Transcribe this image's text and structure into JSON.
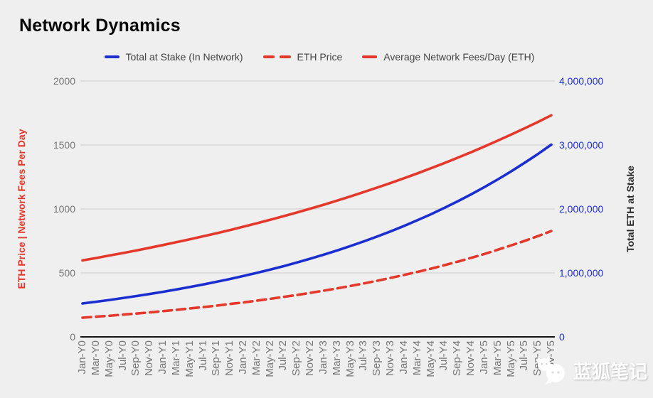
{
  "title": "Network Dynamics",
  "colors": {
    "background": "#efefef",
    "blue": "#1b2fd0",
    "red": "#e4382b",
    "grid": "#cdcdcd",
    "axis_line": "#141414",
    "tick_gray": "#757575",
    "legend_text": "#434343"
  },
  "legend": {
    "items": [
      {
        "label": "Total at Stake (In Network)",
        "color": "#1b2fd0",
        "marker": "solid"
      },
      {
        "label": "ETH Price",
        "color": "#e4382b",
        "marker": "dashed"
      },
      {
        "label": "Average Network Fees/Day (ETH)",
        "color": "#e4382b",
        "marker": "solid"
      }
    ]
  },
  "left_axis": {
    "title": "ETH Price | Network Fees Per Day",
    "color": "#e4382b",
    "ticks": [
      "2000",
      "1500",
      "1000",
      "500",
      "0"
    ]
  },
  "right_axis": {
    "title": "Total ETH at Stake",
    "color": "#1b2fd0",
    "ticks": [
      "4,000,000",
      "3,000,000",
      "2,000,000",
      "1,000,000",
      "0"
    ]
  },
  "watermark": {
    "text": "蓝狐笔记",
    "icon": "bluefox-chat-bubble-icon"
  },
  "chart_data": {
    "type": "line",
    "title": "Network Dynamics",
    "categories": [
      "Jan-Y0",
      "Mar-Y0",
      "May-Y0",
      "Jul-Y0",
      "Sep-Y0",
      "Nov-Y0",
      "Jan-Y1",
      "Mar-Y1",
      "May-Y1",
      "Jul-Y1",
      "Sep-Y1",
      "Nov-Y1",
      "Jan-Y2",
      "Mar-Y2",
      "May-Y2",
      "Jul-Y2",
      "Sep-Y2",
      "Nov-Y2",
      "Jan-Y3",
      "Mar-Y3",
      "May-Y3",
      "Jul-Y3",
      "Sep-Y3",
      "Nov-Y3",
      "Jan-Y4",
      "Mar-Y4",
      "May-Y4",
      "Jul-Y4",
      "Sep-Y4",
      "Nov-Y4",
      "Jan-Y5",
      "Mar-Y5",
      "May-Y5",
      "Jul-Y5",
      "Sep-Y5",
      "Nov-Y5"
    ],
    "series": [
      {
        "name": "Total at Stake (In Network)",
        "axis": "right",
        "color": "#1b2fd0",
        "style": "solid",
        "values": [
          522000,
          549000,
          577000,
          607000,
          638000,
          670000,
          705000,
          741000,
          779000,
          819000,
          861000,
          905000,
          951000,
          1000000,
          1051000,
          1105000,
          1162000,
          1222000,
          1284000,
          1350000,
          1420000,
          1492000,
          1569000,
          1649000,
          1734000,
          1823000,
          1916000,
          2015000,
          2118000,
          2227000,
          2341000,
          2461000,
          2587000,
          2720000,
          2859000,
          3006000
        ]
      },
      {
        "name": "ETH Price",
        "axis": "left",
        "color": "#e4382b",
        "style": "dashed",
        "values": [
          150,
          158,
          165,
          174,
          182,
          191,
          201,
          211,
          222,
          233,
          244,
          257,
          269,
          283,
          297,
          312,
          327,
          344,
          361,
          379,
          398,
          418,
          439,
          461,
          484,
          508,
          533,
          560,
          588,
          617,
          648,
          681,
          715,
          750,
          788,
          827
        ]
      },
      {
        "name": "Average Network Fees/Day (ETH)",
        "axis": "left",
        "color": "#e4382b",
        "style": "solid",
        "values": [
          598,
          616,
          636,
          655,
          675,
          696,
          718,
          740,
          763,
          786,
          810,
          835,
          861,
          888,
          915,
          943,
          972,
          1002,
          1033,
          1065,
          1098,
          1132,
          1167,
          1203,
          1240,
          1278,
          1318,
          1358,
          1400,
          1443,
          1488,
          1534,
          1581,
          1630,
          1680,
          1732
        ]
      }
    ],
    "left_ylabel": "ETH Price | Network Fees Per Day",
    "right_ylabel": "Total ETH at Stake",
    "left_ylim": [
      0,
      2000
    ],
    "right_ylim": [
      0,
      4000000
    ],
    "grid": true,
    "legend_position": "top"
  }
}
